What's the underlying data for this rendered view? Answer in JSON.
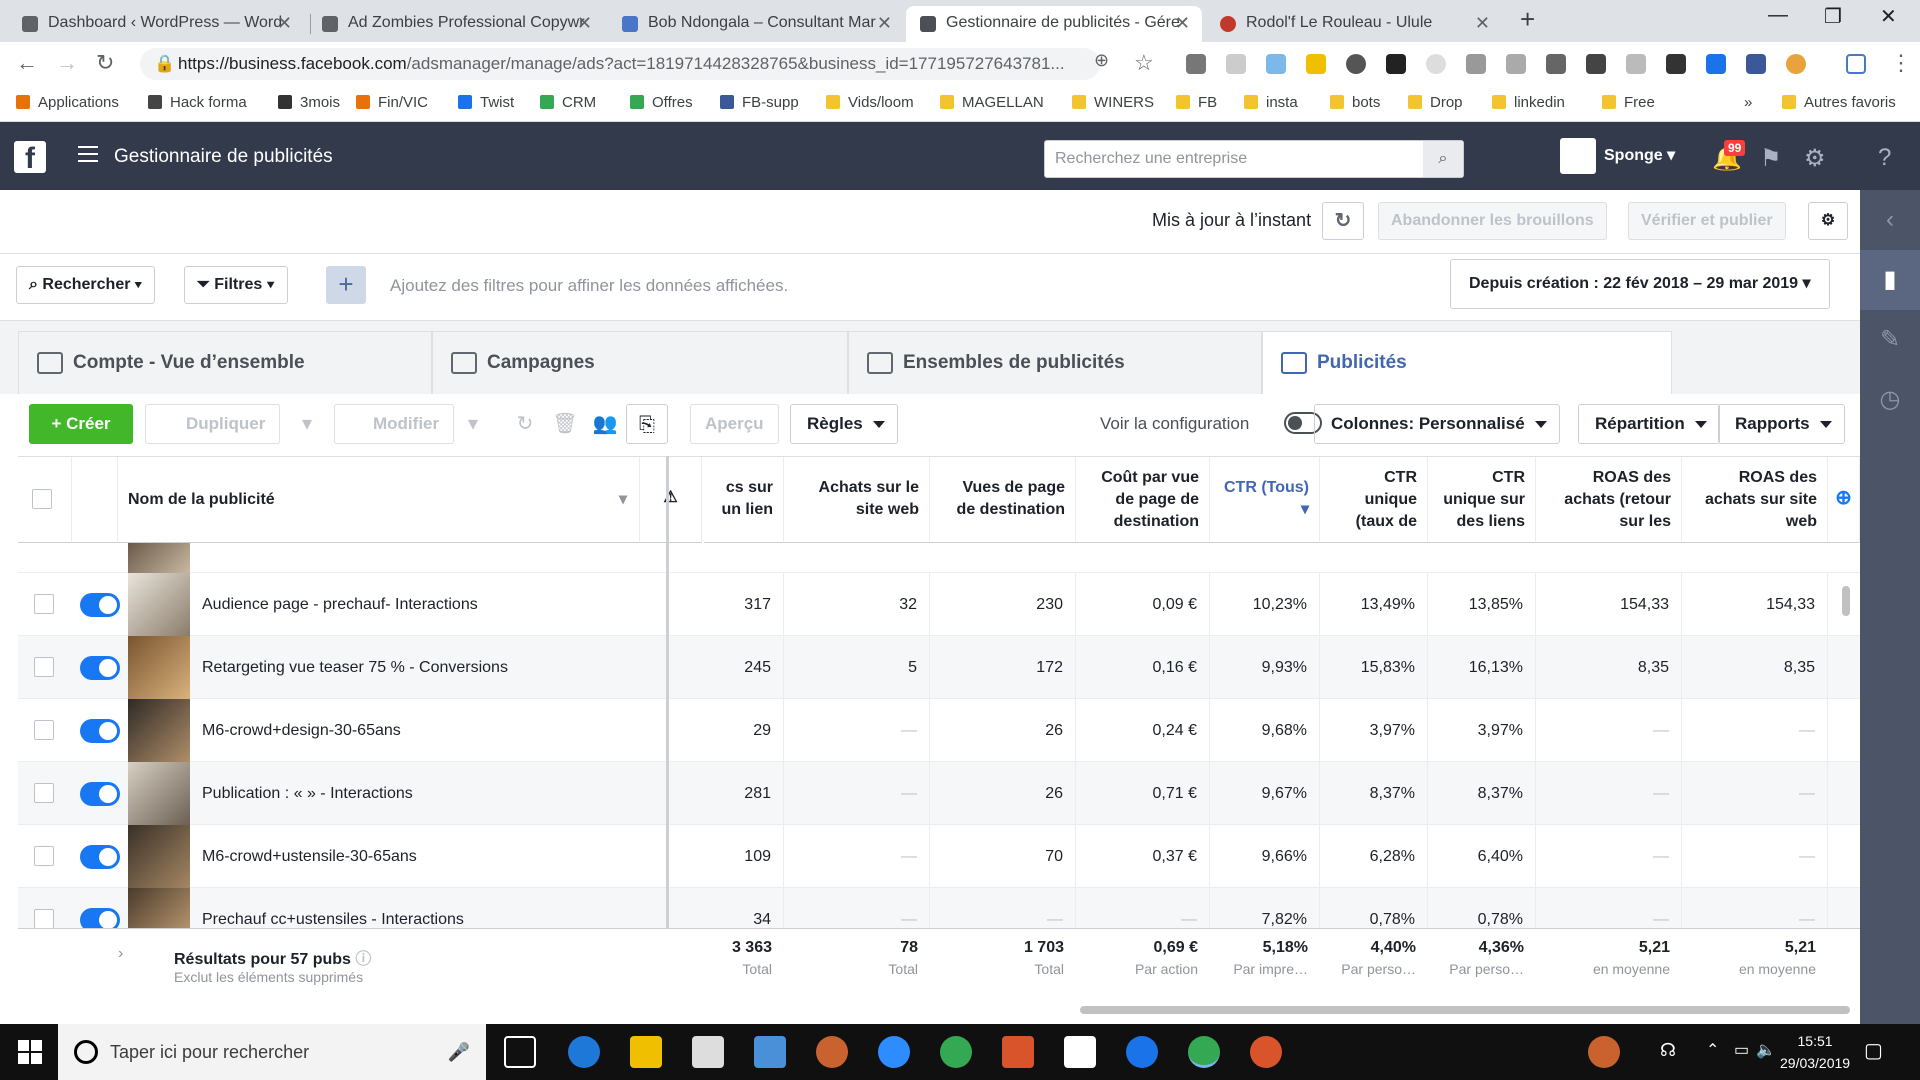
{
  "browser": {
    "tabs": [
      {
        "title": "Dashboard ‹ WordPress — Word",
        "active": false
      },
      {
        "title": "Ad Zombies Professional Copywr",
        "active": false
      },
      {
        "title": "Bob Ndongala – Consultant Mar",
        "active": false
      },
      {
        "title": "Gestionnaire de publicités - Gére",
        "active": true
      },
      {
        "title": "Rodol'f Le Rouleau - Ulule",
        "active": false
      }
    ],
    "url_host": "https://business.facebook.com",
    "url_path": "/adsmanager/manage/ads?act=1819714428328765&business_id=177195727643781...",
    "bookmarks": [
      {
        "label": "Applications",
        "folder": false,
        "color": "#e8710a"
      },
      {
        "label": "Hack forma",
        "folder": false,
        "color": "#444"
      },
      {
        "label": "3mois",
        "folder": false,
        "color": "#333"
      },
      {
        "label": "Fin/VIC",
        "folder": false,
        "color": "#e8710a"
      },
      {
        "label": "Twist",
        "folder": false,
        "color": "#1a73e8"
      },
      {
        "label": "CRM",
        "folder": false,
        "color": "#34a853"
      },
      {
        "label": "Offres",
        "folder": false,
        "color": "#34a853"
      },
      {
        "label": "FB-supp",
        "folder": false,
        "color": "#3b5998"
      },
      {
        "label": "Vids/loom",
        "folder": true
      },
      {
        "label": "MAGELLAN",
        "folder": true
      },
      {
        "label": "WINERS",
        "folder": true
      },
      {
        "label": "FB",
        "folder": true
      },
      {
        "label": "insta",
        "folder": true
      },
      {
        "label": "bots",
        "folder": true
      },
      {
        "label": "Drop",
        "folder": true
      },
      {
        "label": "linkedin",
        "folder": true
      },
      {
        "label": "Free",
        "folder": true
      }
    ],
    "bookmarks_more": "»",
    "other_bookmarks": "Autres favoris"
  },
  "fb": {
    "app_title": "Gestionnaire de publicités",
    "search_placeholder": "Recherchez une entreprise",
    "account_name": "Sponge",
    "notif_count": "99"
  },
  "status": {
    "updated": "Mis à jour à l’instant",
    "discard": "Abandonner les brouillons",
    "publish": "Vérifier et publier"
  },
  "filters": {
    "search": "Rechercher",
    "filters": "Filtres",
    "hint": "Ajoutez des filtres pour affiner les données affichées.",
    "date_range": "Depuis création : 22 fév 2018 – 29 mar 2019"
  },
  "levels": {
    "account": "Compte - Vue d’ensemble",
    "campaigns": "Campagnes",
    "adsets": "Ensembles de publicités",
    "ads": "Publicités"
  },
  "toolbar": {
    "create": "Créer",
    "duplicate": "Dupliquer",
    "edit": "Modifier",
    "preview": "Aperçu",
    "rules": "Règles",
    "view_config": "Voir la configuration",
    "columns_label": "Colonnes: ",
    "columns_value": "Personnalisé",
    "breakdown": "Répartition",
    "reports": "Rapports"
  },
  "columns": {
    "name": "Nom de la publicité",
    "clicks": "cs sur un lien",
    "purchases": "Achats sur le site web",
    "landing_views": "Vues de page de destination",
    "cost_landing": "Coût par vue de page de destination",
    "ctr_all": "CTR (Tous)",
    "ctr_unique": "CTR unique (taux de",
    "ctr_unique_links": "CTR unique sur des liens",
    "roas_purchases": "ROAS des achats (retour sur les",
    "roas_web": "ROAS des achats sur site web"
  },
  "rows": [
    {
      "name": "Audience page - prechauf- Interactions",
      "clicks": "317",
      "purchases": "32",
      "landing_views": "230",
      "cost_landing": "0,09 €",
      "ctr_all": "10,23%",
      "ctr_unique": "13,49%",
      "ctr_unique_links": "13,85%",
      "roas_purchases": "154,33",
      "roas_web": "154,33"
    },
    {
      "name": "Retargeting vue teaser 75 % - Conversions",
      "clicks": "245",
      "purchases": "5",
      "landing_views": "172",
      "cost_landing": "0,16 €",
      "ctr_all": "9,93%",
      "ctr_unique": "15,83%",
      "ctr_unique_links": "16,13%",
      "roas_purchases": "8,35",
      "roas_web": "8,35"
    },
    {
      "name": "M6-crowd+design-30-65ans",
      "clicks": "29",
      "purchases": "—",
      "landing_views": "26",
      "cost_landing": "0,24 €",
      "ctr_all": "9,68%",
      "ctr_unique": "3,97%",
      "ctr_unique_links": "3,97%",
      "roas_purchases": "—",
      "roas_web": "—"
    },
    {
      "name": "Publication : « » - Interactions",
      "clicks": "281",
      "purchases": "—",
      "landing_views": "26",
      "cost_landing": "0,71 €",
      "ctr_all": "9,67%",
      "ctr_unique": "8,37%",
      "ctr_unique_links": "8,37%",
      "roas_purchases": "—",
      "roas_web": "—"
    },
    {
      "name": "M6-crowd+ustensile-30-65ans",
      "clicks": "109",
      "purchases": "—",
      "landing_views": "70",
      "cost_landing": "0,37 €",
      "ctr_all": "9,66%",
      "ctr_unique": "6,28%",
      "ctr_unique_links": "6,40%",
      "roas_purchases": "—",
      "roas_web": "—"
    },
    {
      "name": "Prechauf cc+ustensiles - Interactions",
      "clicks": "34",
      "purchases": "—",
      "landing_views": "—",
      "cost_landing": "—",
      "ctr_all": "7,82%",
      "ctr_unique": "0,78%",
      "ctr_unique_links": "0,78%",
      "roas_purchases": "—",
      "roas_web": "—"
    }
  ],
  "totals": {
    "label": "Résultats pour 57 pubs",
    "sub": "Exclut les éléments supprimés",
    "clicks": "3 363",
    "clicks_sub": "Total",
    "purchases": "78",
    "purchases_sub": "Total",
    "landing_views": "1 703",
    "landing_views_sub": "Total",
    "cost_landing": "0,69 €",
    "cost_landing_sub": "Par action",
    "ctr_all": "5,18%",
    "ctr_all_sub": "Par impre…",
    "ctr_unique": "4,40%",
    "ctr_unique_sub": "Par perso…",
    "ctr_unique_links": "4,36%",
    "ctr_unique_links_sub": "Par perso…",
    "roas_purchases": "5,21",
    "roas_purchases_sub": "en moyenne",
    "roas_web": "5,21",
    "roas_web_sub": "en moyenne"
  },
  "taskbar": {
    "search_placeholder": "Taper ici pour rechercher",
    "time": "15:51",
    "date": "29/03/2019"
  }
}
